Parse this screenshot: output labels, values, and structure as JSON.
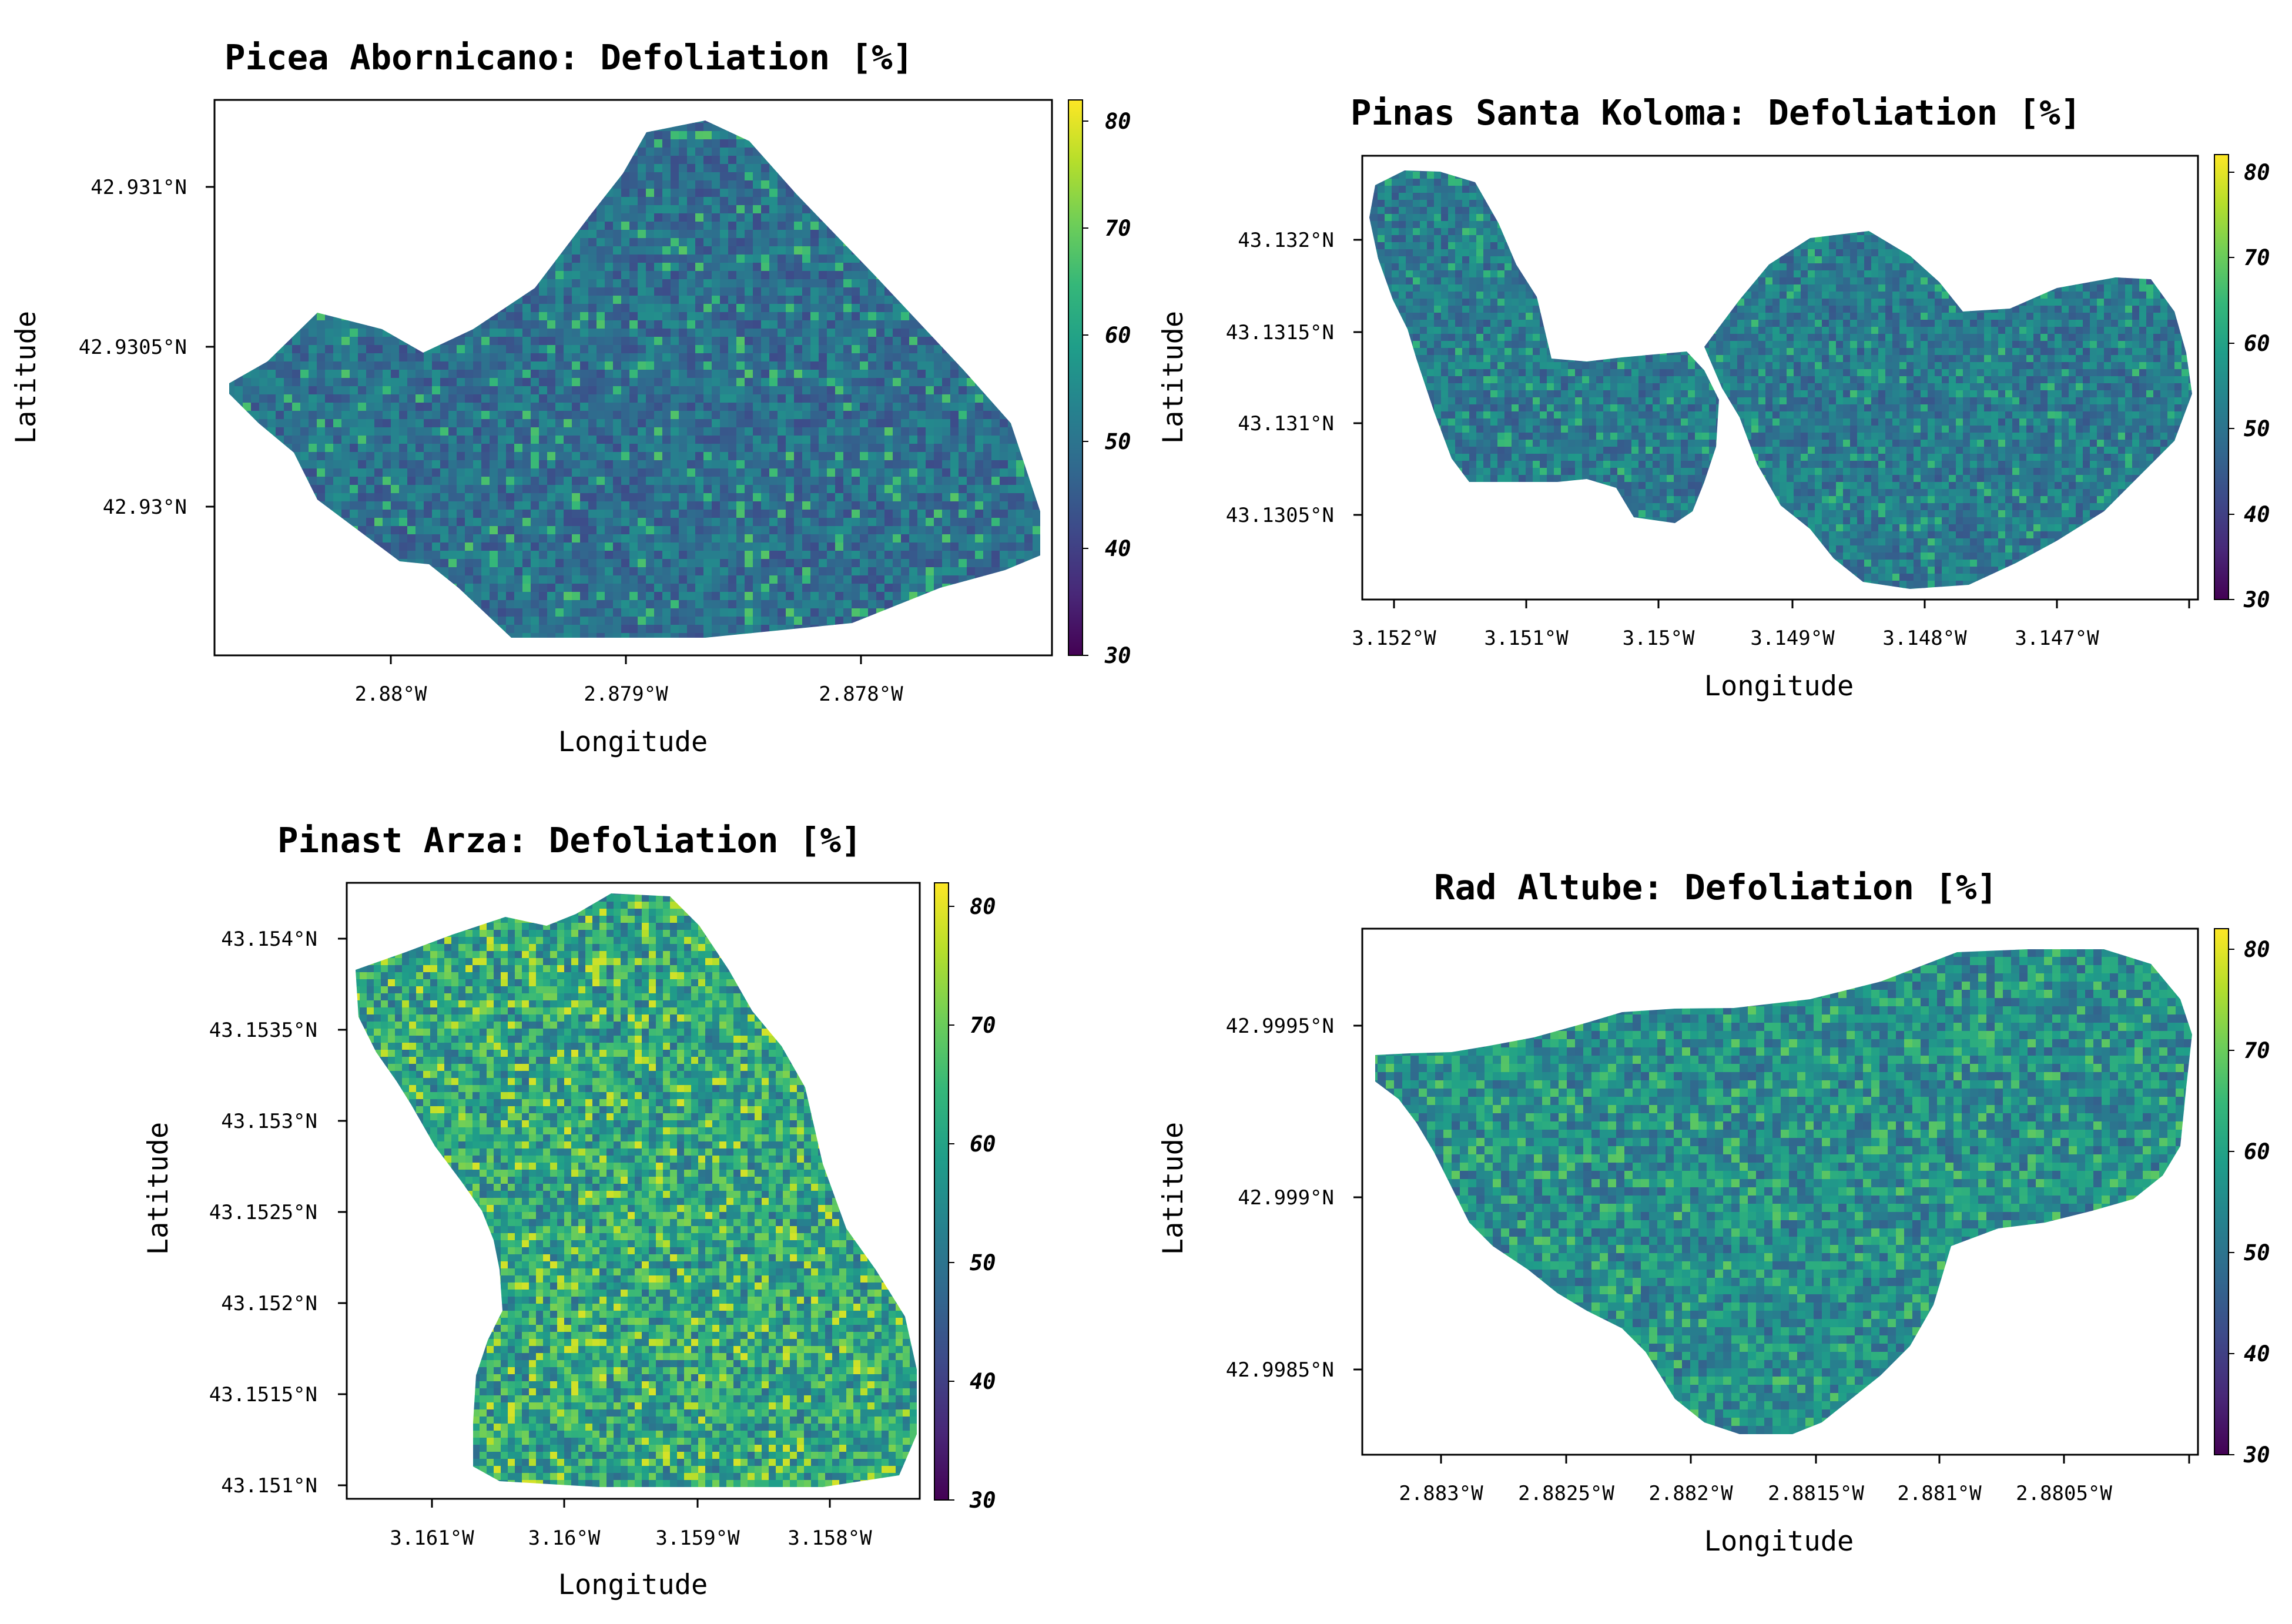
{
  "colors": {
    "viridis_stops": [
      "#440154",
      "#482878",
      "#3e4989",
      "#31688e",
      "#26828e",
      "#1f9e89",
      "#35b779",
      "#6ece58",
      "#b5de2b",
      "#fde725"
    ]
  },
  "chart_data": [
    {
      "type": "heatmap",
      "id": "picea",
      "title": "Picea Abornicano: Defoliation [%]",
      "xlabel": "Longitude",
      "ylabel": "Latitude",
      "x_ticks": [
        "2.88°W",
        "2.879°W",
        "2.878°W"
      ],
      "y_ticks": [
        "42.931°N",
        "42.9305°N",
        "42.93°N"
      ],
      "colorbar": {
        "ticks": [
          "30",
          "40",
          "50",
          "60",
          "70",
          "80"
        ],
        "range": [
          30,
          82
        ]
      },
      "typical_value_range": [
        42,
        56
      ],
      "highlight_value": 68
    },
    {
      "type": "heatmap",
      "id": "pinas",
      "title": "Pinas Santa Koloma: Defoliation [%]",
      "xlabel": "Longitude",
      "ylabel": "Latitude",
      "x_ticks": [
        "3.152°W",
        "3.151°W",
        "3.15°W",
        "3.149°W",
        "3.148°W",
        "3.147°W"
      ],
      "y_ticks": [
        "43.132°N",
        "43.1315°N",
        "43.131°N",
        "43.1305°N"
      ],
      "colorbar": {
        "ticks": [
          "30",
          "40",
          "50",
          "60",
          "70",
          "80"
        ],
        "range": [
          30,
          82
        ]
      },
      "typical_value_range": [
        44,
        58
      ],
      "highlight_value": 66
    },
    {
      "type": "heatmap",
      "id": "pinast",
      "title": "Pinast Arza: Defoliation [%]",
      "xlabel": "Longitude",
      "ylabel": "Latitude",
      "x_ticks": [
        "3.161°W",
        "3.16°W",
        "3.159°W",
        "3.158°W"
      ],
      "y_ticks": [
        "43.154°N",
        "43.1535°N",
        "43.153°N",
        "43.1525°N",
        "43.152°N",
        "43.1515°N",
        "43.151°N"
      ],
      "colorbar": {
        "ticks": [
          "30",
          "40",
          "50",
          "60",
          "70",
          "80"
        ],
        "range": [
          30,
          82
        ]
      },
      "typical_value_range": [
        48,
        72
      ],
      "highlight_value": 76
    },
    {
      "type": "heatmap",
      "id": "rad",
      "title": "Rad Altube: Defoliation [%]",
      "xlabel": "Longitude",
      "ylabel": "Latitude",
      "x_ticks": [
        "2.883°W",
        "2.8825°W",
        "2.882°W",
        "2.8815°W",
        "2.881°W",
        "2.8805°W"
      ],
      "y_ticks": [
        "42.9995°N",
        "42.999°N",
        "42.9985°N"
      ],
      "colorbar": {
        "ticks": [
          "30",
          "40",
          "50",
          "60",
          "70",
          "80"
        ],
        "range": [
          30,
          82
        ]
      },
      "typical_value_range": [
        46,
        64
      ],
      "highlight_value": 66
    }
  ]
}
